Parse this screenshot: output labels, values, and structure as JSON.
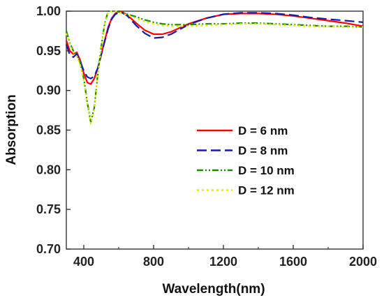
{
  "chart_data": {
    "type": "line",
    "title": "",
    "xlabel": "Wavelength(nm)",
    "ylabel": "Absorption",
    "xlim": [
      300,
      2000
    ],
    "ylim": [
      0.7,
      1.0
    ],
    "xticks": [
      400,
      800,
      1200,
      1600,
      2000
    ],
    "xtick_labels": [
      "400",
      "800",
      "1200",
      "1600",
      "2000"
    ],
    "yticks": [
      0.7,
      0.75,
      0.8,
      0.85,
      0.9,
      0.95,
      1.0
    ],
    "ytick_labels": [
      "0.70",
      "0.75",
      "0.80",
      "0.85",
      "0.90",
      "0.95",
      "1.00"
    ],
    "grid": false,
    "legend_position": "center-right",
    "series": [
      {
        "name": "D = 6 nm",
        "color": "#ff0000",
        "dash": "solid",
        "x": [
          300,
          320,
          340,
          360,
          380,
          400,
          420,
          440,
          460,
          480,
          500,
          520,
          540,
          560,
          580,
          600,
          620,
          650,
          700,
          750,
          800,
          850,
          900,
          950,
          1000,
          1100,
          1200,
          1300,
          1400,
          1500,
          1600,
          1700,
          1800,
          1900,
          2000
        ],
        "y": [
          0.963,
          0.95,
          0.946,
          0.948,
          0.938,
          0.922,
          0.91,
          0.908,
          0.915,
          0.928,
          0.945,
          0.963,
          0.98,
          0.991,
          0.997,
          1.0,
          0.999,
          0.995,
          0.985,
          0.976,
          0.971,
          0.971,
          0.974,
          0.979,
          0.984,
          0.991,
          0.996,
          0.997,
          0.997,
          0.996,
          0.994,
          0.991,
          0.988,
          0.985,
          0.981
        ]
      },
      {
        "name": "D = 8 nm",
        "color": "#1a1aa6",
        "dash": "dashed",
        "x": [
          300,
          320,
          340,
          360,
          380,
          400,
          420,
          440,
          460,
          480,
          500,
          520,
          540,
          560,
          580,
          600,
          620,
          650,
          700,
          750,
          800,
          850,
          900,
          950,
          1000,
          1100,
          1200,
          1300,
          1400,
          1500,
          1600,
          1700,
          1800,
          1900,
          2000
        ],
        "y": [
          0.958,
          0.945,
          0.942,
          0.946,
          0.936,
          0.925,
          0.917,
          0.915,
          0.918,
          0.928,
          0.945,
          0.962,
          0.978,
          0.99,
          0.996,
          0.998,
          0.998,
          0.994,
          0.982,
          0.972,
          0.966,
          0.967,
          0.971,
          0.977,
          0.983,
          0.991,
          0.996,
          0.998,
          0.998,
          0.997,
          0.995,
          0.992,
          0.99,
          0.988,
          0.986
        ]
      },
      {
        "name": "D = 10 nm",
        "color": "#1a8a00",
        "dash": "dashdotdot",
        "x": [
          300,
          320,
          340,
          360,
          380,
          400,
          420,
          440,
          460,
          480,
          500,
          520,
          540,
          560,
          580,
          600,
          620,
          650,
          700,
          750,
          800,
          850,
          900,
          950,
          1000,
          1100,
          1200,
          1300,
          1400,
          1500,
          1600,
          1700,
          1800,
          1900,
          2000
        ],
        "y": [
          0.975,
          0.96,
          0.95,
          0.945,
          0.935,
          0.915,
          0.885,
          0.86,
          0.878,
          0.92,
          0.955,
          0.985,
          1.0,
          1.0,
          1.0,
          0.999,
          0.998,
          0.996,
          0.993,
          0.989,
          0.986,
          0.984,
          0.983,
          0.983,
          0.983,
          0.984,
          0.984,
          0.985,
          0.985,
          0.984,
          0.983,
          0.982,
          0.981,
          0.981,
          0.98
        ]
      },
      {
        "name": "D = 12 nm",
        "color": "#e6e600",
        "dash": "dotted",
        "x": [
          300,
          320,
          340,
          360,
          380,
          400,
          420,
          440,
          460,
          480,
          500,
          520,
          540,
          560,
          580,
          600,
          620,
          650,
          700,
          750,
          800,
          850,
          900,
          950,
          1000,
          1100,
          1200,
          1300,
          1400,
          1500,
          1600,
          1700,
          1800,
          1900,
          2000
        ],
        "y": [
          0.972,
          0.958,
          0.948,
          0.943,
          0.932,
          0.912,
          0.882,
          0.858,
          0.875,
          0.918,
          0.953,
          0.984,
          0.999,
          1.0,
          1.0,
          0.999,
          0.997,
          0.995,
          0.991,
          0.987,
          0.984,
          0.982,
          0.981,
          0.981,
          0.981,
          0.982,
          0.983,
          0.984,
          0.984,
          0.983,
          0.982,
          0.981,
          0.981,
          0.98,
          0.98
        ]
      }
    ]
  }
}
